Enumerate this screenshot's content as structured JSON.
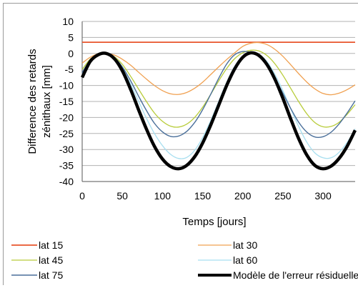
{
  "chart_data": {
    "type": "line",
    "xlabel": "Temps [jours]",
    "ylabel_lines": [
      "Difference des retards",
      "zénithaux [mm]"
    ],
    "xlim": [
      0,
      340
    ],
    "ylim": [
      -40,
      10
    ],
    "xticks": [
      0,
      50,
      100,
      150,
      200,
      250,
      300
    ],
    "yticks": [
      10,
      5,
      0,
      -5,
      -10,
      -15,
      -20,
      -25,
      -30,
      -35,
      -40
    ],
    "grid": "horizontal",
    "legend_position": "bottom",
    "x": [
      0,
      10,
      20,
      30,
      40,
      50,
      60,
      70,
      80,
      90,
      100,
      110,
      120,
      130,
      140,
      150,
      160,
      170,
      180,
      190,
      200,
      210,
      220,
      230,
      240,
      250,
      260,
      270,
      280,
      290,
      300,
      310,
      320,
      330,
      340
    ],
    "series": [
      {
        "name": "lat 15",
        "color": "#e8542b",
        "width": 1.8,
        "values": [
          3.5,
          3.5,
          3.5,
          3.5,
          3.5,
          3.5,
          3.5,
          3.5,
          3.5,
          3.5,
          3.5,
          3.5,
          3.5,
          3.5,
          3.5,
          3.5,
          3.5,
          3.5,
          3.5,
          3.5,
          3.5,
          3.5,
          3.5,
          3.5,
          3.5,
          3.5,
          3.5,
          3.5,
          3.5,
          3.5,
          3.5,
          3.5,
          3.5,
          3.5,
          3.5
        ]
      },
      {
        "name": "lat 30",
        "color": "#f0a050",
        "width": 1.3,
        "values": [
          -3.0,
          -1.2,
          -0.1,
          0.0,
          -0.5,
          -1.8,
          -3.6,
          -5.8,
          -8.0,
          -10.0,
          -11.6,
          -12.6,
          -12.8,
          -12.2,
          -10.9,
          -9.0,
          -6.6,
          -4.2,
          -1.9,
          0.2,
          2.2,
          3.2,
          3.4,
          2.8,
          1.3,
          -0.9,
          -3.6,
          -6.4,
          -9.0,
          -11.1,
          -12.5,
          -12.9,
          -12.4,
          -11.3,
          -9.8
        ]
      },
      {
        "name": "lat 45",
        "color": "#b8cc3a",
        "width": 1.3,
        "values": [
          -5.0,
          -1.8,
          -0.3,
          0.0,
          -1.0,
          -3.4,
          -7.0,
          -11.0,
          -15.0,
          -18.6,
          -21.2,
          -22.7,
          -23.0,
          -22.1,
          -20.0,
          -16.8,
          -12.8,
          -8.6,
          -4.7,
          -1.6,
          0.2,
          1.0,
          0.8,
          -0.6,
          -3.2,
          -6.8,
          -11.0,
          -15.2,
          -18.9,
          -21.6,
          -22.9,
          -22.8,
          -21.5,
          -19.0,
          -16.0
        ]
      },
      {
        "name": "lat 60",
        "color": "#a8dff0",
        "width": 1.3,
        "values": [
          -6.5,
          -2.2,
          -0.3,
          0.0,
          -1.3,
          -4.6,
          -9.4,
          -14.8,
          -20.2,
          -25.0,
          -28.8,
          -31.5,
          -32.8,
          -32.5,
          -30.3,
          -26.3,
          -21.0,
          -15.0,
          -9.0,
          -4.0,
          -0.9,
          0.3,
          -0.3,
          -2.5,
          -6.5,
          -11.6,
          -17.4,
          -23.0,
          -27.8,
          -31.1,
          -32.6,
          -32.6,
          -30.9,
          -27.8,
          -23.6
        ]
      },
      {
        "name": "lat 75",
        "color": "#4a6f9a",
        "width": 1.4,
        "values": [
          -6.0,
          -2.0,
          -0.3,
          0.0,
          -1.2,
          -4.2,
          -8.4,
          -13.2,
          -17.8,
          -21.8,
          -24.5,
          -25.9,
          -25.8,
          -24.4,
          -21.6,
          -17.6,
          -12.8,
          -7.8,
          -3.3,
          -0.4,
          0.6,
          0.3,
          -1.0,
          -3.6,
          -7.6,
          -12.4,
          -17.3,
          -21.6,
          -24.6,
          -26.1,
          -26.0,
          -24.6,
          -22.0,
          -18.6,
          -14.8
        ]
      },
      {
        "name": "Modèle de l'erreur résiduelle",
        "color": "#000000",
        "width": 4.5,
        "values": [
          -7.5,
          -2.5,
          -0.4,
          0.0,
          -1.6,
          -5.4,
          -11.0,
          -17.4,
          -23.6,
          -29.0,
          -33.0,
          -35.3,
          -36.0,
          -35.0,
          -32.3,
          -28.0,
          -22.4,
          -16.2,
          -10.0,
          -4.8,
          -1.2,
          0.2,
          -0.6,
          -3.4,
          -8.0,
          -14.0,
          -20.6,
          -26.8,
          -31.8,
          -35.0,
          -36.0,
          -35.2,
          -32.8,
          -29.0,
          -24.0
        ]
      }
    ]
  }
}
